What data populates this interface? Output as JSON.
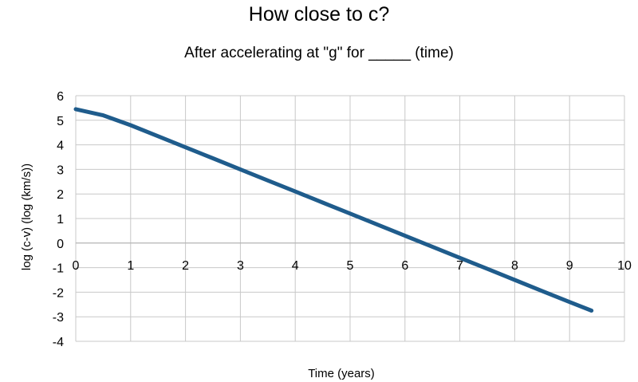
{
  "chart_data": {
    "type": "line",
    "title": "How close to c?",
    "subtitle": "After accelerating at \"g\" for _____ (time)",
    "xlabel": "Time  (years)",
    "ylabel": "log (c-v) (log (km/s))",
    "xlim": [
      0,
      10
    ],
    "ylim": [
      -4,
      6
    ],
    "xticks": [
      0,
      1,
      2,
      3,
      4,
      5,
      6,
      7,
      8,
      9,
      10
    ],
    "yticks": [
      6,
      5,
      4,
      3,
      2,
      1,
      0,
      -1,
      -2,
      -3,
      -4
    ],
    "grid": true,
    "line_color": "#1f5c8c",
    "series": [
      {
        "x": [
          0,
          0.5,
          1,
          1.5,
          2,
          2.5,
          3,
          3.5,
          4,
          4.5,
          5,
          5.5,
          6,
          6.5,
          7,
          7.5,
          8,
          8.5,
          9,
          9.4
        ],
        "y": [
          5.45,
          5.2,
          4.8,
          4.35,
          3.9,
          3.45,
          3.0,
          2.55,
          2.1,
          1.65,
          1.2,
          0.75,
          0.3,
          -0.15,
          -0.6,
          -1.05,
          -1.5,
          -1.95,
          -2.4,
          -2.75
        ]
      }
    ]
  }
}
